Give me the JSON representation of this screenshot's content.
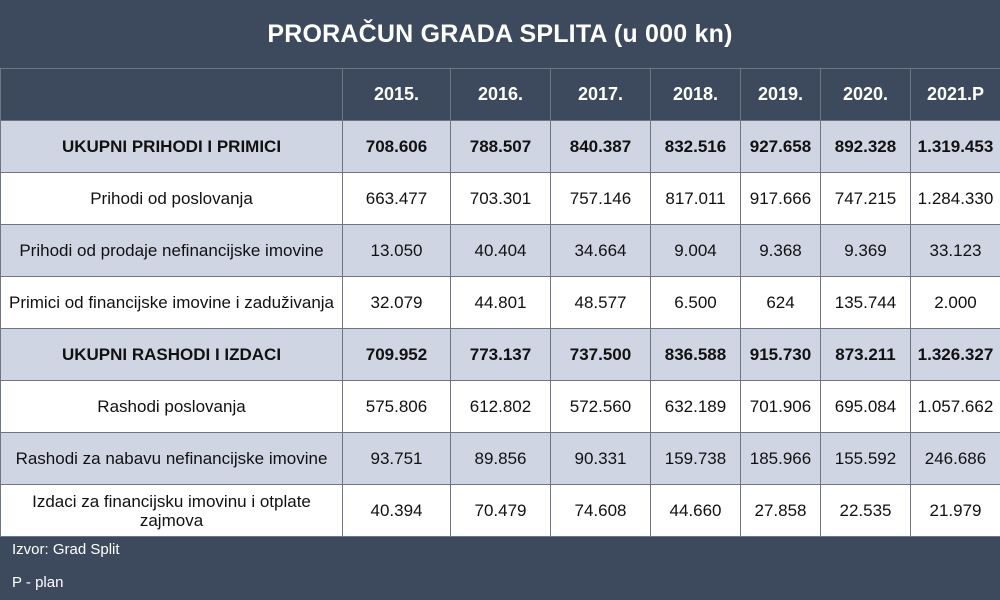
{
  "chart_data": {
    "type": "table",
    "title": "PRORAČUN GRADA SPLITA (u 000 kn)",
    "columns": [
      "",
      "2015.",
      "2016.",
      "2017.",
      "2018.",
      "2019.",
      "2020.",
      "2021.P"
    ],
    "rows": [
      {
        "label": "UKUPNI PRIHODI I PRIMICI",
        "bold": true,
        "shaded": true,
        "values": [
          "708.606",
          "788.507",
          "840.387",
          "832.516",
          "927.658",
          "892.328",
          "1.319.453"
        ]
      },
      {
        "label": "Prihodi od poslovanja",
        "bold": false,
        "shaded": false,
        "values": [
          "663.477",
          "703.301",
          "757.146",
          "817.011",
          "917.666",
          "747.215",
          "1.284.330"
        ]
      },
      {
        "label": "Prihodi od prodaje nefinancijske imovine",
        "bold": false,
        "shaded": true,
        "values": [
          "13.050",
          "40.404",
          "34.664",
          "9.004",
          "9.368",
          "9.369",
          "33.123"
        ]
      },
      {
        "label": "Primici od financijske imovine i zaduživanja",
        "bold": false,
        "shaded": false,
        "values": [
          "32.079",
          "44.801",
          "48.577",
          "6.500",
          "624",
          "135.744",
          "2.000"
        ]
      },
      {
        "label": "UKUPNI RASHODI I IZDACI",
        "bold": true,
        "shaded": true,
        "values": [
          "709.952",
          "773.137",
          "737.500",
          "836.588",
          "915.730",
          "873.211",
          "1.326.327"
        ]
      },
      {
        "label": "Rashodi poslovanja",
        "bold": false,
        "shaded": false,
        "values": [
          "575.806",
          "612.802",
          "572.560",
          "632.189",
          "701.906",
          "695.084",
          "1.057.662"
        ]
      },
      {
        "label": "Rashodi za nabavu nefinancijske imovine",
        "bold": false,
        "shaded": true,
        "values": [
          "93.751",
          "89.856",
          "90.331",
          "159.738",
          "185.966",
          "155.592",
          "246.686"
        ]
      },
      {
        "label": "Izdaci za financijsku imovinu i otplate zajmova",
        "bold": false,
        "shaded": false,
        "values": [
          "40.394",
          "70.479",
          "74.608",
          "44.660",
          "27.858",
          "22.535",
          "21.979"
        ]
      }
    ]
  },
  "footer": {
    "source": "Izvor: Grad Split",
    "note": "P - plan"
  },
  "colors": {
    "header_bg": "#3d4a5e",
    "shaded_row": "#cfd5e3",
    "plain_row": "#ffffff"
  }
}
